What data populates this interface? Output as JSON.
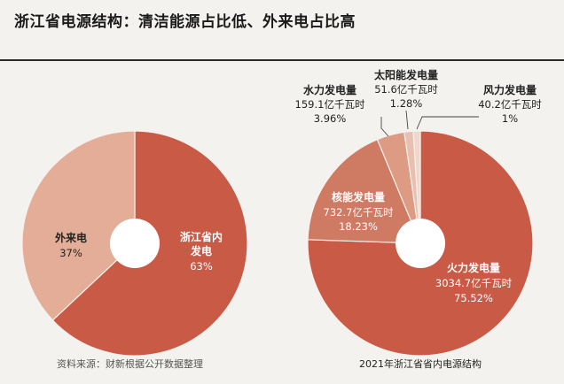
{
  "title": "浙江省电源结构：清洁能源占比低、外来电占比高",
  "source": "资料来源：财新根据公开数据整理",
  "colors": {
    "dark": "#c95a45",
    "light": "#e3ad97",
    "nuclear": "#cf7a63",
    "hydro": "#dd9b84",
    "solar": "#e9c0b0",
    "wind": "#f0d6cb"
  },
  "chart_data": [
    {
      "type": "pie",
      "title": "",
      "slices": [
        {
          "name": "浙江省内发电",
          "label_line1": "浙江省内",
          "label_line2": "发电",
          "pct_text": "63%",
          "value": 63
        },
        {
          "name": "外来电",
          "label_line1": "外来电",
          "pct_text": "37%",
          "value": 37
        }
      ]
    },
    {
      "type": "pie",
      "title": "2021年浙江省省内电源结构",
      "unit": "亿千瓦时",
      "slices": [
        {
          "name": "火力发电量",
          "value_text": "3034.7亿千瓦时",
          "pct_text": "75.52%",
          "value": 3034.7
        },
        {
          "name": "核能发电量",
          "value_text": "732.7亿千瓦时",
          "pct_text": "18.23%",
          "value": 732.7
        },
        {
          "name": "水力发电量",
          "value_text": "159.1亿千瓦时",
          "pct_text": "3.96%",
          "value": 159.1
        },
        {
          "name": "太阳能发电量",
          "value_text": "51.6亿千瓦时",
          "pct_text": "1.28%",
          "value": 51.6
        },
        {
          "name": "风力发电量",
          "value_text": "40.2亿千瓦时",
          "pct_text": "1%",
          "value": 40.2
        }
      ]
    }
  ]
}
